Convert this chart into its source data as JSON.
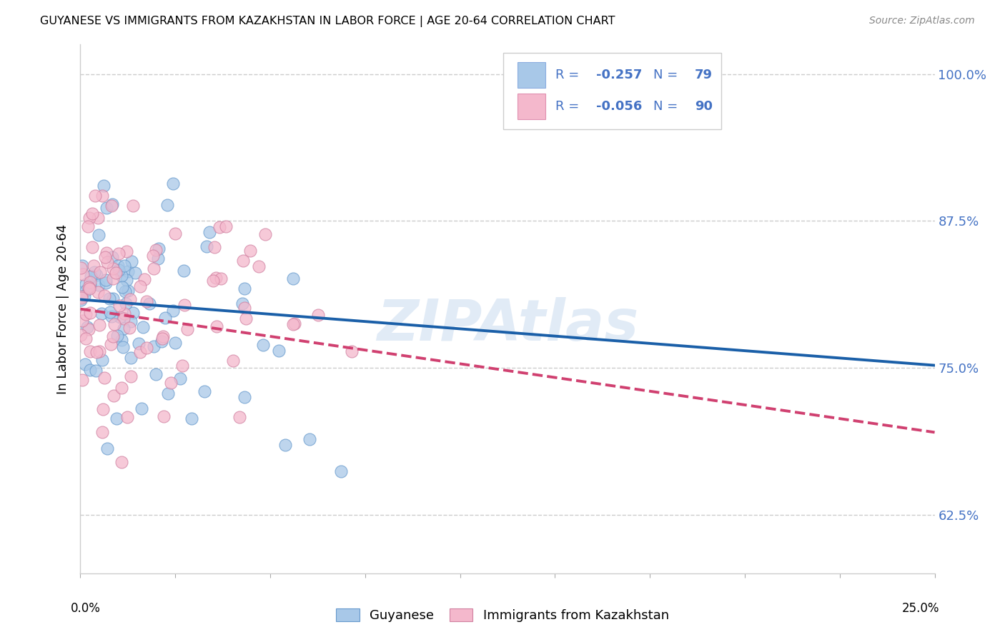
{
  "title": "GUYANESE VS IMMIGRANTS FROM KAZAKHSTAN IN LABOR FORCE | AGE 20-64 CORRELATION CHART",
  "source": "Source: ZipAtlas.com",
  "ylabel": "In Labor Force | Age 20-64",
  "ytick_labels": [
    "62.5%",
    "75.0%",
    "87.5%",
    "100.0%"
  ],
  "ytick_values": [
    0.625,
    0.75,
    0.875,
    1.0
  ],
  "xlim": [
    0.0,
    0.25
  ],
  "ylim": [
    0.575,
    1.025
  ],
  "series": [
    {
      "name": "Guyanese",
      "R": -0.257,
      "N": 79,
      "color": "#a8c8e8",
      "edge_color": "#6699cc",
      "line_color": "#1a5fa8",
      "line_style": "solid"
    },
    {
      "name": "Immigrants from Kazakhstan",
      "R": -0.056,
      "N": 90,
      "color": "#f4b8cc",
      "edge_color": "#d080a0",
      "line_color": "#d04070",
      "line_style": "dashed"
    }
  ],
  "watermark": "ZIPAtlas",
  "background_color": "white",
  "grid_color": "#cccccc",
  "legend_text_color": "#4472c4",
  "legend_R_label": "R = ",
  "legend_N_label": "N = "
}
